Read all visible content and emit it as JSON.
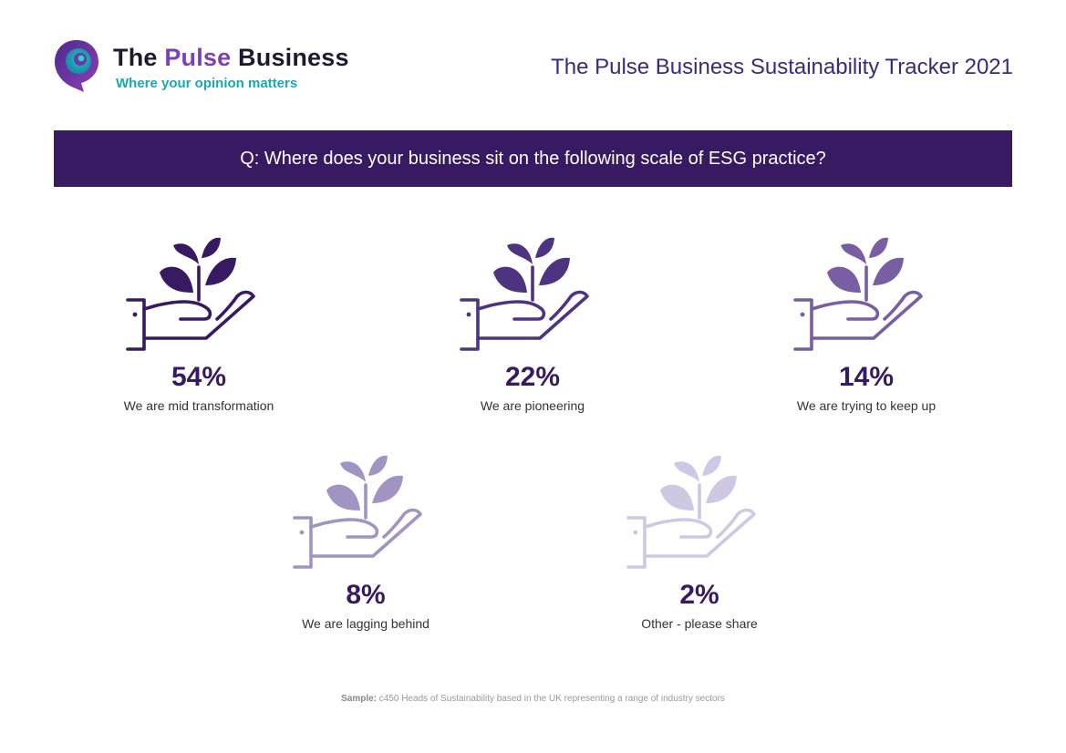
{
  "brand": {
    "name_part1": "The ",
    "name_accent": "Pulse",
    "name_part2": " Business",
    "tagline": "Where your opinion matters",
    "colors": {
      "dark": "#1c1a33",
      "purple": "#7b3fb6",
      "teal": "#19a7b3"
    }
  },
  "tracker_title": "The Pulse Business Sustainability Tracker 2021",
  "question": "Q: Where does your business sit on the following scale of ESG practice?",
  "icon": "plant-in-hand-icon",
  "chart_data": {
    "type": "pictogram",
    "categories": [
      "We are mid transformation",
      "We are pioneering",
      "We are trying to keep up",
      "We are lagging behind",
      "Other - please share"
    ],
    "values": [
      54,
      22,
      14,
      8,
      2
    ],
    "value_labels": [
      "54%",
      "22%",
      "14%",
      "8%",
      "2%"
    ],
    "unit": "%",
    "colors": [
      "#371a62",
      "#4e3480",
      "#7a5ea3",
      "#a194c2",
      "#cfc8e2"
    ]
  },
  "sample": {
    "label": "Sample:",
    "text": "c450 Heads of Sustainability based in the UK representing a range of industry sectors"
  }
}
